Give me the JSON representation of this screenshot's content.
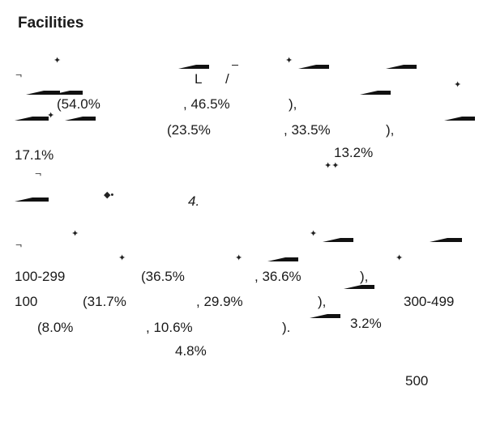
{
  "section": {
    "heading": "Facilities"
  },
  "para1": {
    "line1": {
      "a": "L",
      "b": "/"
    },
    "line2": {
      "a": "(54.0%",
      "b": ", 46.5%",
      "c": "),"
    },
    "line3": {
      "a": "(23.5%",
      "b": ", 33.5%",
      "c": "),"
    },
    "line4": {
      "a": "17.1%",
      "b": "13.2%"
    },
    "line6": {
      "a": "4."
    }
  },
  "para2": {
    "line2": {
      "a": "100-299",
      "b": "(36.5%",
      "c": ", 36.6%",
      "d": "),"
    },
    "line3": {
      "a": "100",
      "b": "(31.7%",
      "c": ", 29.9%",
      "d": "),",
      "e": "300-499"
    },
    "line4": {
      "a": "(8.0%",
      "b": ", 10.6%",
      "c": ").",
      "d": "3.2%"
    },
    "line5": {
      "a": "4.8%"
    },
    "line6": {
      "a": "500"
    }
  }
}
